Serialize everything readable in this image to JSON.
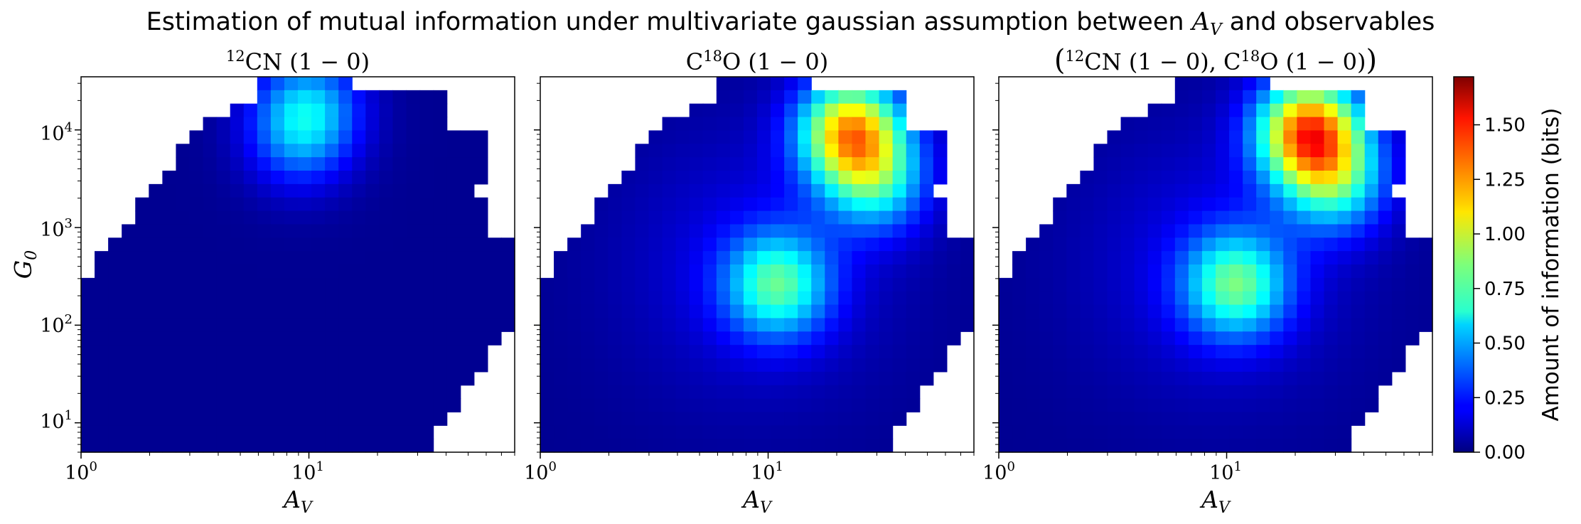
{
  "figure": {
    "title": "Estimation of mutual information under multivariate gaussian assumption between A_V and observables",
    "title_pre": "Estimation of mutual information under multivariate gaussian assumption between ",
    "title_sym": "A",
    "title_sub": "V",
    "title_post": " and observables"
  },
  "chart_data": [
    {
      "type": "heatmap",
      "title": "12CN (1 − 0)",
      "title_parts": {
        "pre": "",
        "sup": "12",
        "base": "CN",
        "rest": " (1 − 0)"
      },
      "xlabel": "A_V",
      "xlabel_sym": "A",
      "xlabel_sub": "V",
      "ylabel": "G_0",
      "ylabel_sym": "G",
      "ylabel_sub": "0",
      "xscale": "log",
      "yscale": "log",
      "xlim": [
        1,
        80
      ],
      "ylim": [
        5,
        35000
      ],
      "x_ticks": [
        {
          "base": "10",
          "exp": "0"
        },
        {
          "base": "10",
          "exp": "1"
        }
      ],
      "y_ticks": [
        {
          "base": "10",
          "exp": "1"
        },
        {
          "base": "10",
          "exp": "2"
        },
        {
          "base": "10",
          "exp": "3"
        },
        {
          "base": "10",
          "exp": "4"
        }
      ],
      "peaks": [
        {
          "av": 10,
          "g0": 18000,
          "value": 0.42
        },
        {
          "av": 9,
          "g0": 8000,
          "value": 0.3
        }
      ]
    },
    {
      "type": "heatmap",
      "title": "C18O (1 − 0)",
      "title_parts": {
        "pre": "C",
        "sup": "18",
        "base": "O",
        "rest": " (1 − 0)"
      },
      "xlabel": "A_V",
      "xlabel_sym": "A",
      "xlabel_sub": "V",
      "xscale": "log",
      "yscale": "log",
      "xlim": [
        1,
        80
      ],
      "ylim": [
        5,
        35000
      ],
      "x_ticks": [
        {
          "base": "10",
          "exp": "0"
        },
        {
          "base": "10",
          "exp": "1"
        }
      ],
      "peaks": [
        {
          "av": 23,
          "g0": 10000,
          "value": 1.1
        },
        {
          "av": 11,
          "g0": 260,
          "value": 0.65
        },
        {
          "av": 30,
          "g0": 3000,
          "value": 0.55
        }
      ]
    },
    {
      "type": "heatmap",
      "title": "(12CN (1 − 0), C18O (1 − 0))",
      "title_parts": {
        "open": "(",
        "sup1": "12",
        "base1": "CN",
        "mid": " (1 − 0), C",
        "sup2": "18",
        "base2": "O",
        "rest": " (1 − 0)",
        "close": ")"
      },
      "xlabel": "A_V",
      "xlabel_sym": "A",
      "xlabel_sub": "V",
      "xscale": "log",
      "yscale": "log",
      "xlim": [
        1,
        80
      ],
      "ylim": [
        5,
        35000
      ],
      "x_ticks": [
        {
          "base": "10",
          "exp": "0"
        },
        {
          "base": "10",
          "exp": "1"
        }
      ],
      "peaks": [
        {
          "av": 23,
          "g0": 10000,
          "value": 1.25
        },
        {
          "av": 11,
          "g0": 260,
          "value": 0.68
        },
        {
          "av": 30,
          "g0": 3000,
          "value": 0.6
        }
      ]
    }
  ],
  "colorbar": {
    "label": "Amount of information (bits)",
    "colormap": "jet",
    "range": [
      0,
      1.72
    ],
    "ticks": [
      "0.00",
      "0.25",
      "0.50",
      "0.75",
      "1.00",
      "1.25",
      "1.50"
    ],
    "tick_values": [
      0,
      0.25,
      0.5,
      0.75,
      1.0,
      1.25,
      1.5
    ]
  }
}
